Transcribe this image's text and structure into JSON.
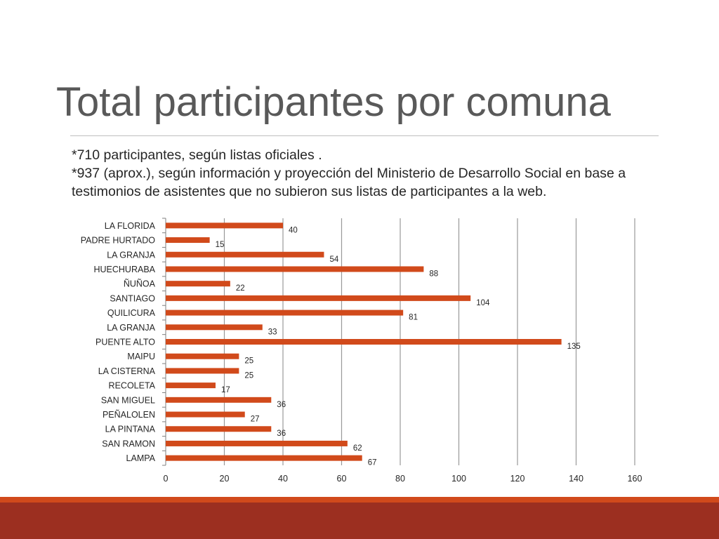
{
  "slide": {
    "title": "Total participantes por comuna",
    "note_line1": "*710 participantes, según listas oficiales .",
    "note_line2": "*937 (aprox.), según información y proyección del Ministerio de Desarrollo Social en base a",
    "note_line3": "testimonios de asistentes que no subieron sus listas de participantes a la web."
  },
  "colors": {
    "bar": "#d14a1b",
    "footer_thin": "#d14a1b",
    "footer_bar": "#9c2f20",
    "title_text": "#595959",
    "gridline": "#999999"
  },
  "chart_data": {
    "type": "bar",
    "orientation": "horizontal",
    "categories": [
      "LA FLORIDA",
      "PADRE HURTADO",
      "LA GRANJA",
      "HUECHURABA",
      "ÑUÑOA",
      "SANTIAGO",
      "QUILICURA",
      "LA GRANJA",
      "PUENTE ALTO",
      "MAIPU",
      "LA CISTERNA",
      "RECOLETA",
      "SAN MIGUEL",
      "PEÑALOLEN",
      "LA PINTANA",
      "SAN RAMON",
      "LAMPA"
    ],
    "values": [
      40,
      15,
      54,
      88,
      22,
      104,
      81,
      33,
      135,
      25,
      25,
      17,
      36,
      27,
      36,
      62,
      67
    ],
    "xlim": [
      0,
      160
    ],
    "xticks": [
      0,
      20,
      40,
      60,
      80,
      100,
      120,
      140,
      160
    ],
    "grid": true,
    "data_labels": true,
    "title": "",
    "xlabel": "",
    "ylabel": ""
  }
}
